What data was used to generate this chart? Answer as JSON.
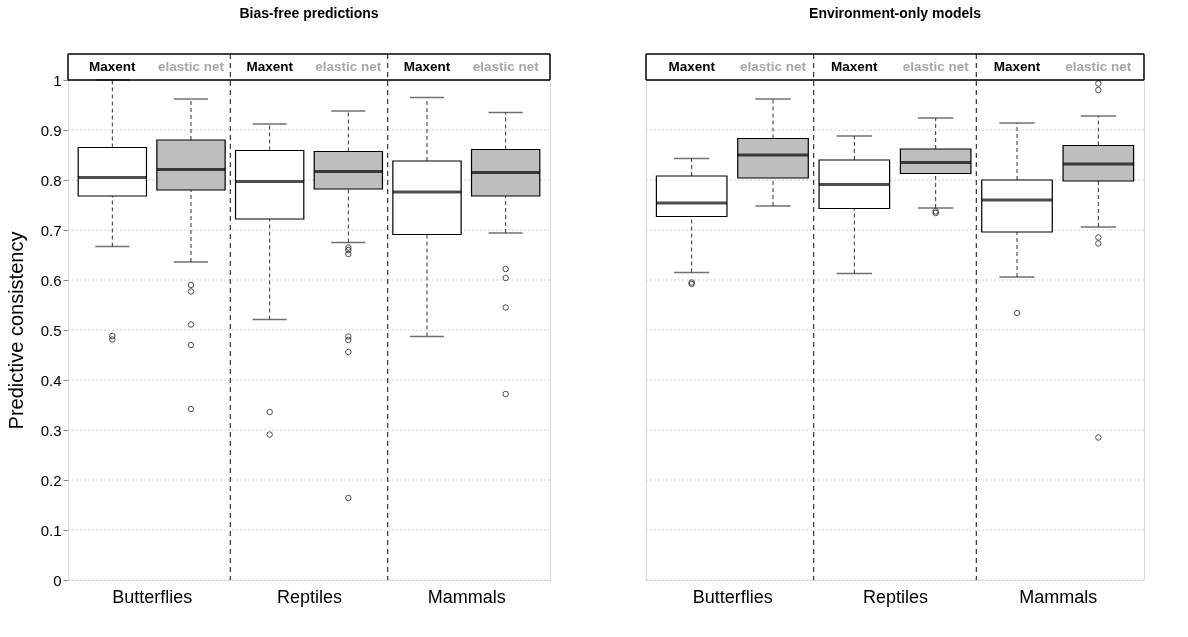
{
  "chart_data": [
    {
      "type": "box",
      "title": "Bias-free predictions",
      "ylabel": "Predictive consistency",
      "categories": [
        "Butterflies",
        "Reptiles",
        "Mammals"
      ],
      "ylim": [
        0,
        1
      ],
      "yticks": [
        0,
        0.1,
        0.2,
        0.3,
        0.4,
        0.5,
        0.6,
        0.7,
        0.8,
        0.9,
        1
      ],
      "grid": "y",
      "legend": "top",
      "series": [
        {
          "name": "Maxent",
          "color": "#ffffff",
          "boxes": [
            {
              "low": 0.667,
              "q1": 0.768,
              "median": 0.805,
              "q3": 0.865,
              "high": 1.0,
              "outliers": [
                0.488,
                0.481
              ]
            },
            {
              "low": 0.521,
              "q1": 0.722,
              "median": 0.797,
              "q3": 0.859,
              "high": 0.912,
              "outliers": [
                0.336,
                0.291
              ]
            },
            {
              "low": 0.487,
              "q1": 0.691,
              "median": 0.776,
              "q3": 0.838,
              "high": 0.965
            }
          ]
        },
        {
          "name": "elastic net",
          "color": "#bebebe",
          "boxes": [
            {
              "low": 0.636,
              "q1": 0.78,
              "median": 0.821,
              "q3": 0.88,
              "high": 0.962,
              "outliers": [
                0.59,
                0.577,
                0.511,
                0.47,
                0.342
              ]
            },
            {
              "low": 0.675,
              "q1": 0.782,
              "median": 0.817,
              "q3": 0.857,
              "high": 0.938,
              "outliers": [
                0.665,
                0.66,
                0.652,
                0.487,
                0.48,
                0.456,
                0.164
              ]
            },
            {
              "low": 0.694,
              "q1": 0.768,
              "median": 0.815,
              "q3": 0.861,
              "high": 0.935,
              "outliers": [
                0.622,
                0.604,
                0.545,
                0.372
              ]
            }
          ]
        }
      ]
    },
    {
      "type": "box",
      "title": "Environment-only models",
      "categories": [
        "Butterflies",
        "Reptiles",
        "Mammals"
      ],
      "ylim": [
        0,
        1
      ],
      "yticks": [
        0,
        0.1,
        0.2,
        0.3,
        0.4,
        0.5,
        0.6,
        0.7,
        0.8,
        0.9,
        1
      ],
      "grid": "y",
      "legend": "top",
      "tick_labels": "x",
      "series": [
        {
          "name": "Maxent",
          "color": "#ffffff",
          "boxes": [
            {
              "low": 0.615,
              "q1": 0.727,
              "median": 0.754,
              "q3": 0.808,
              "high": 0.843,
              "outliers": [
                0.595,
                0.592
              ]
            },
            {
              "low": 0.613,
              "q1": 0.743,
              "median": 0.791,
              "q3": 0.84,
              "high": 0.888
            },
            {
              "low": 0.606,
              "q1": 0.696,
              "median": 0.76,
              "q3": 0.8,
              "high": 0.914,
              "outliers": [
                0.534
              ]
            }
          ]
        },
        {
          "name": "elastic net",
          "color": "#bebebe",
          "boxes": [
            {
              "low": 0.748,
              "q1": 0.804,
              "median": 0.85,
              "q3": 0.883,
              "high": 0.962
            },
            {
              "low": 0.744,
              "q1": 0.813,
              "median": 0.835,
              "q3": 0.862,
              "high": 0.924,
              "outliers": [
                0.737,
                0.734
              ]
            },
            {
              "low": 0.706,
              "q1": 0.798,
              "median": 0.832,
              "q3": 0.869,
              "high": 0.928,
              "outliers": [
                0.993,
                0.98,
                0.685,
                0.673,
                0.285
              ]
            }
          ]
        }
      ]
    }
  ]
}
